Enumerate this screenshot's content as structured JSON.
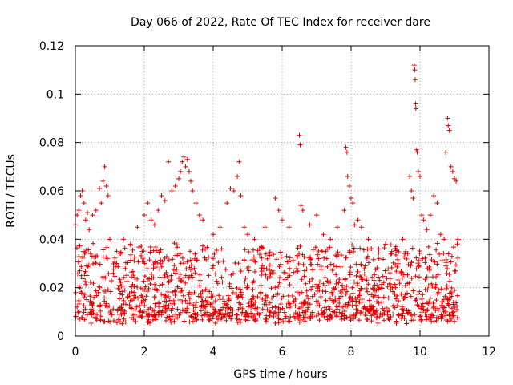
{
  "chart_data": {
    "type": "scatter",
    "title": "Day 066 of 2022, Rate Of TEC Index for receiver dare",
    "xlabel": "GPS time / hours",
    "ylabel": "ROTI / TECUs",
    "xlim": [
      0,
      12
    ],
    "ylim": [
      0,
      0.12
    ],
    "xticks": [
      0,
      2,
      4,
      6,
      8,
      10,
      12
    ],
    "yticks": [
      0,
      0.02,
      0.04,
      0.06,
      0.08,
      0.1,
      0.12
    ],
    "xtick_labels": [
      "0",
      "2",
      "4",
      "6",
      "8",
      "10",
      "12"
    ],
    "ytick_labels": [
      "0",
      "0.02",
      "0.04",
      "0.06",
      "0.08",
      "0.1",
      "0.12"
    ],
    "grid": true,
    "marker": "plus",
    "color": "#e00000",
    "x_data_range": [
      0,
      11.1
    ],
    "dense_band": [
      0.005,
      0.035
    ],
    "series": [
      {
        "name": "ROTI",
        "points": [
          [
            0.0,
            0.046
          ],
          [
            0.05,
            0.05
          ],
          [
            0.1,
            0.052
          ],
          [
            0.15,
            0.058
          ],
          [
            0.2,
            0.06
          ],
          [
            0.25,
            0.055
          ],
          [
            0.3,
            0.048
          ],
          [
            0.35,
            0.051
          ],
          [
            0.4,
            0.044
          ],
          [
            0.5,
            0.05
          ],
          [
            0.6,
            0.052
          ],
          [
            0.7,
            0.061
          ],
          [
            0.75,
            0.055
          ],
          [
            0.8,
            0.064
          ],
          [
            0.85,
            0.07
          ],
          [
            0.9,
            0.062
          ],
          [
            0.95,
            0.058
          ],
          [
            1.0,
            0.04
          ],
          [
            1.2,
            0.035
          ],
          [
            1.4,
            0.04
          ],
          [
            1.6,
            0.038
          ],
          [
            1.8,
            0.045
          ],
          [
            2.0,
            0.05
          ],
          [
            2.1,
            0.055
          ],
          [
            2.2,
            0.048
          ],
          [
            2.3,
            0.046
          ],
          [
            2.4,
            0.052
          ],
          [
            2.5,
            0.058
          ],
          [
            2.6,
            0.056
          ],
          [
            2.7,
            0.072
          ],
          [
            2.8,
            0.06
          ],
          [
            2.9,
            0.062
          ],
          [
            3.0,
            0.065
          ],
          [
            3.05,
            0.068
          ],
          [
            3.1,
            0.072
          ],
          [
            3.15,
            0.074
          ],
          [
            3.2,
            0.07
          ],
          [
            3.25,
            0.073
          ],
          [
            3.3,
            0.068
          ],
          [
            3.35,
            0.064
          ],
          [
            3.4,
            0.06
          ],
          [
            3.5,
            0.055
          ],
          [
            3.6,
            0.05
          ],
          [
            3.7,
            0.048
          ],
          [
            4.0,
            0.042
          ],
          [
            4.2,
            0.045
          ],
          [
            4.4,
            0.055
          ],
          [
            4.5,
            0.061
          ],
          [
            4.6,
            0.06
          ],
          [
            4.7,
            0.066
          ],
          [
            4.75,
            0.072
          ],
          [
            4.8,
            0.058
          ],
          [
            4.9,
            0.045
          ],
          [
            5.0,
            0.042
          ],
          [
            5.2,
            0.04
          ],
          [
            5.5,
            0.045
          ],
          [
            5.8,
            0.057
          ],
          [
            5.9,
            0.052
          ],
          [
            6.0,
            0.048
          ],
          [
            6.2,
            0.045
          ],
          [
            6.5,
            0.083
          ],
          [
            6.52,
            0.079
          ],
          [
            6.55,
            0.054
          ],
          [
            6.6,
            0.052
          ],
          [
            6.8,
            0.046
          ],
          [
            7.0,
            0.05
          ],
          [
            7.2,
            0.042
          ],
          [
            7.4,
            0.04
          ],
          [
            7.6,
            0.045
          ],
          [
            7.8,
            0.052
          ],
          [
            7.85,
            0.078
          ],
          [
            7.88,
            0.076
          ],
          [
            7.9,
            0.066
          ],
          [
            7.95,
            0.062
          ],
          [
            8.0,
            0.057
          ],
          [
            8.05,
            0.055
          ],
          [
            8.1,
            0.046
          ],
          [
            8.2,
            0.048
          ],
          [
            8.3,
            0.045
          ],
          [
            8.5,
            0.04
          ],
          [
            8.8,
            0.036
          ],
          [
            9.0,
            0.038
          ],
          [
            9.3,
            0.037
          ],
          [
            9.5,
            0.04
          ],
          [
            9.7,
            0.066
          ],
          [
            9.75,
            0.06
          ],
          [
            9.8,
            0.057
          ],
          [
            9.83,
            0.112
          ],
          [
            9.85,
            0.11
          ],
          [
            9.86,
            0.106
          ],
          [
            9.87,
            0.096
          ],
          [
            9.88,
            0.094
          ],
          [
            9.9,
            0.077
          ],
          [
            9.92,
            0.076
          ],
          [
            9.95,
            0.068
          ],
          [
            10.0,
            0.066
          ],
          [
            10.05,
            0.05
          ],
          [
            10.1,
            0.048
          ],
          [
            10.2,
            0.044
          ],
          [
            10.3,
            0.05
          ],
          [
            10.4,
            0.058
          ],
          [
            10.5,
            0.055
          ],
          [
            10.6,
            0.042
          ],
          [
            10.7,
            0.04
          ],
          [
            10.75,
            0.076
          ],
          [
            10.8,
            0.09
          ],
          [
            10.82,
            0.087
          ],
          [
            10.85,
            0.085
          ],
          [
            10.9,
            0.07
          ],
          [
            10.95,
            0.068
          ],
          [
            11.0,
            0.065
          ],
          [
            11.05,
            0.064
          ],
          [
            11.1,
            0.04
          ]
        ]
      }
    ]
  }
}
